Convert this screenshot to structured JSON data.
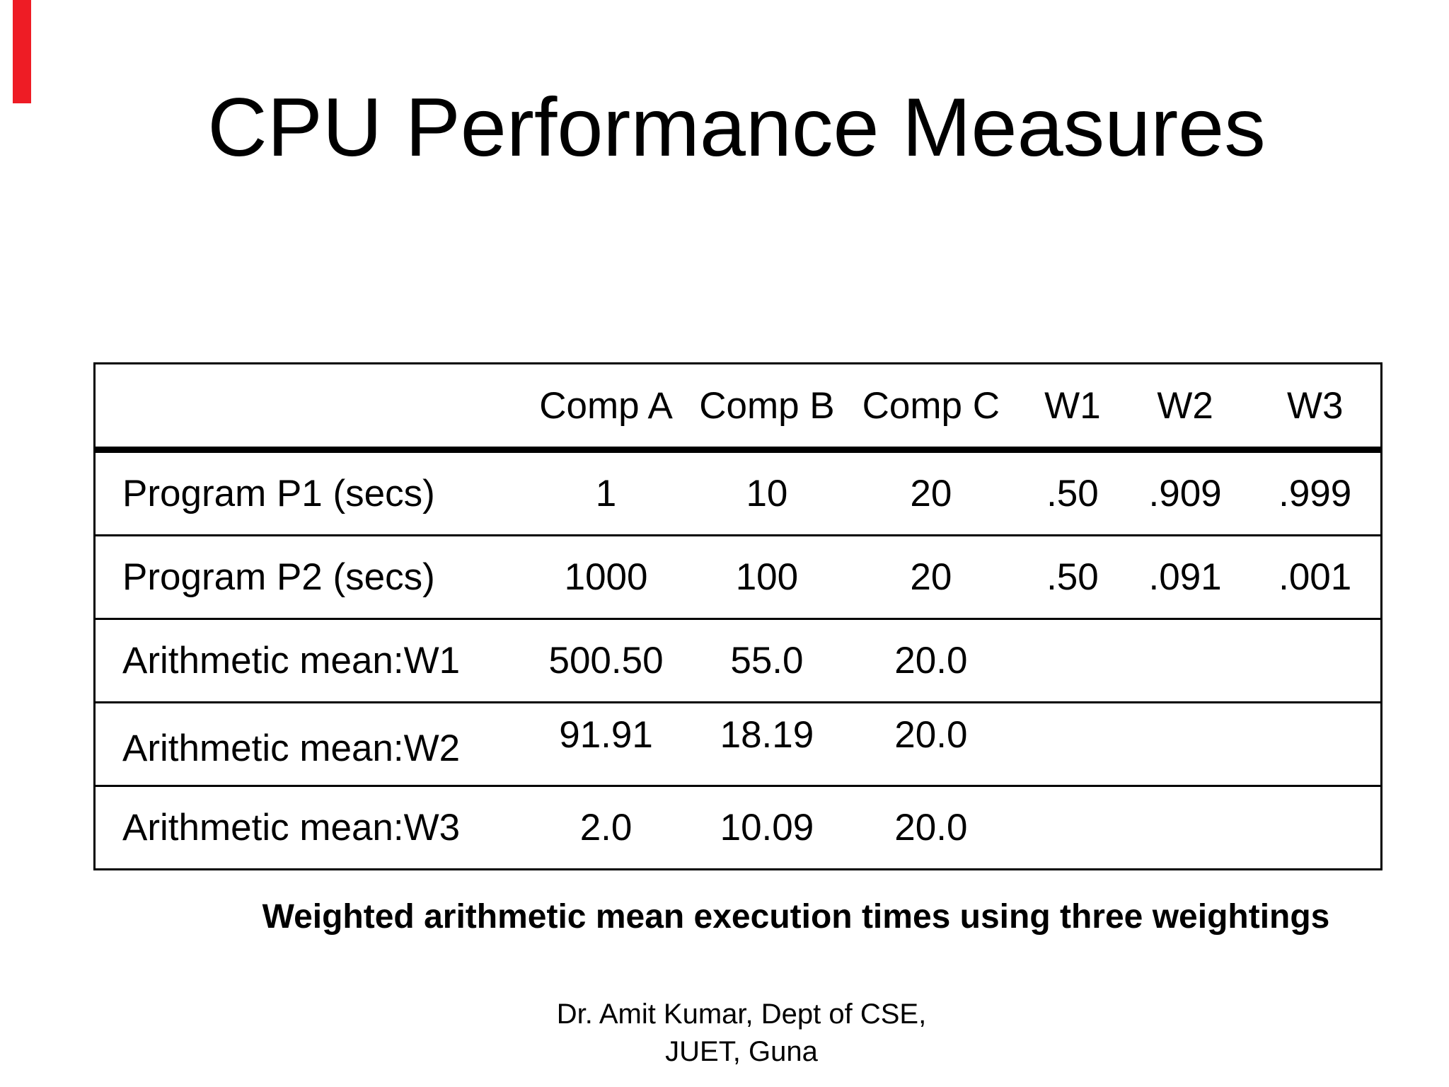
{
  "title": "CPU Performance Measures",
  "marker_color": "#ee1c25",
  "table": {
    "columns": [
      "",
      "Comp A",
      "Comp B",
      "Comp C",
      "W1",
      "W2",
      "W3"
    ],
    "rows": [
      {
        "label": "Program P1 (secs)",
        "values": [
          "1",
          "10",
          "20",
          ".50",
          ".909",
          ".999"
        ]
      },
      {
        "label": "Program P2 (secs)",
        "values": [
          "1000",
          "100",
          "20",
          ".50",
          ".091",
          ".001"
        ]
      },
      {
        "label": "Arithmetic mean:W1",
        "values": [
          "500.50",
          "55.0",
          "20.0",
          "",
          "",
          ""
        ]
      },
      {
        "label": "Arithmetic mean:W2",
        "values": [
          "91.91",
          "18.19",
          "20.0",
          "",
          "",
          ""
        ]
      },
      {
        "label": "Arithmetic mean:W3",
        "values": [
          "2.0",
          "10.09",
          "20.0",
          "",
          "",
          ""
        ]
      }
    ]
  },
  "caption": "Weighted arithmetic mean execution times using three weightings",
  "footer": {
    "line1": "Dr. Amit Kumar, Dept of CSE,",
    "line2": "JUET, Guna"
  }
}
